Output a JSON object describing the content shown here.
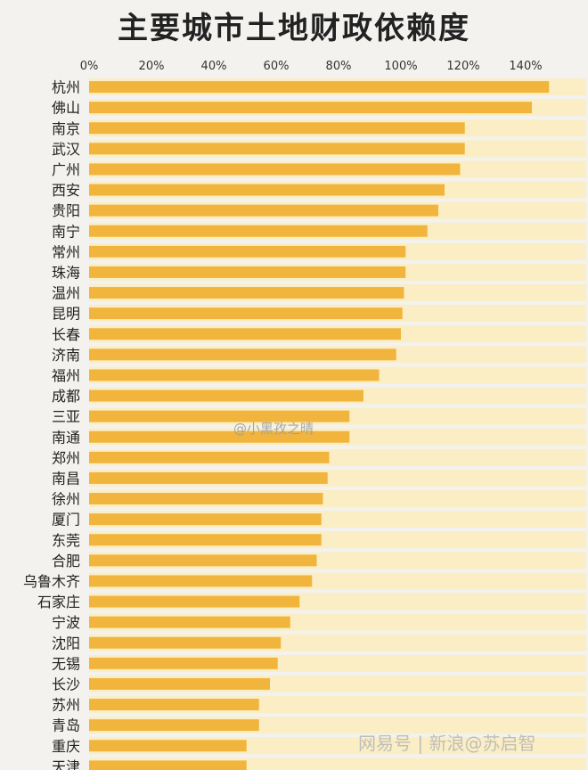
{
  "chart_data": {
    "type": "bar",
    "orientation": "horizontal",
    "title": "主要城市土地财政依赖度",
    "xlim": [
      0,
      150
    ],
    "ticks": [
      0,
      20,
      40,
      60,
      80,
      100,
      120,
      140
    ],
    "tick_labels": [
      "0%",
      "20%",
      "40%",
      "60%",
      "80%",
      "100%",
      "120%",
      "140%"
    ],
    "categories": [
      "杭州",
      "佛山",
      "南京",
      "武汉",
      "广州",
      "西安",
      "贵阳",
      "南宁",
      "常州",
      "珠海",
      "温州",
      "昆明",
      "长春",
      "济南",
      "福州",
      "成都",
      "三亚",
      "南通",
      "郑州",
      "南昌",
      "徐州",
      "厦门",
      "东莞",
      "合肥",
      "乌鲁木齐",
      "石家庄",
      "宁波",
      "沈阳",
      "无锡",
      "长沙",
      "苏州",
      "青岛",
      "重庆",
      "天津"
    ],
    "values": [
      147.5,
      142,
      120.5,
      120.5,
      119,
      114,
      112,
      108.5,
      101.5,
      101.5,
      101,
      100.5,
      100,
      98.5,
      93,
      88,
      83.5,
      83.5,
      77,
      76.5,
      75,
      74.5,
      74.5,
      73,
      71.5,
      67.5,
      64.5,
      61.5,
      60.5,
      58,
      54.5,
      54.5,
      50.5,
      50.5
    ],
    "bar_color": "#f1b53e",
    "band_color": "#fbeec4",
    "grid": false
  },
  "watermarks": {
    "center": "@小黑孜之晴",
    "bottom": "网易号 | 新浪@苏启智"
  }
}
